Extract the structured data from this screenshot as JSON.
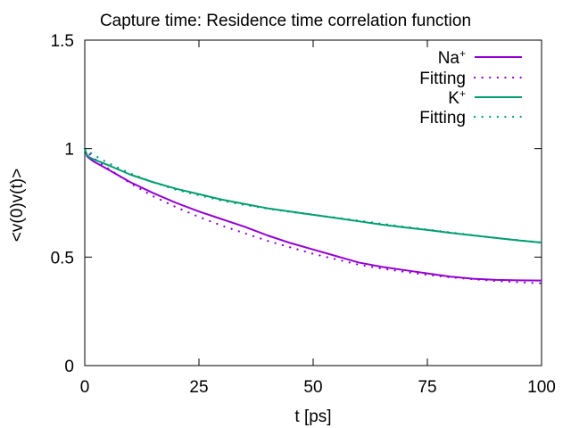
{
  "chart_data": {
    "type": "line",
    "title": "Capture time: Residence time correlation function",
    "xlabel": "t [ps]",
    "ylabel": "<v(0)v(t)>",
    "xlim": [
      0,
      100
    ],
    "ylim": [
      0,
      1.5
    ],
    "xticks": [
      0,
      25,
      50,
      75,
      100
    ],
    "xtick_labels": [
      "0",
      "25",
      "50",
      "75",
      "100"
    ],
    "yticks": [
      0,
      0.5,
      1,
      1.5
    ],
    "ytick_labels": [
      "0",
      "0.5",
      "1",
      "1.5"
    ],
    "grid": false,
    "legend_position": "top-right",
    "series": [
      {
        "name": "Na",
        "name_superscript": "+",
        "style": "solid",
        "color": "#9400d3",
        "x": [
          0,
          0.5,
          1,
          2,
          5,
          10,
          15,
          20,
          25,
          30,
          35,
          40,
          45,
          50,
          55,
          60,
          65,
          70,
          75,
          80,
          85,
          90,
          95,
          100
        ],
        "y": [
          1.0,
          0.965,
          0.955,
          0.94,
          0.905,
          0.845,
          0.795,
          0.75,
          0.71,
          0.675,
          0.64,
          0.6,
          0.565,
          0.535,
          0.505,
          0.475,
          0.455,
          0.44,
          0.425,
          0.41,
          0.4,
          0.395,
          0.393,
          0.392
        ]
      },
      {
        "name": "Fitting",
        "style": "dotted",
        "color": "#9400d3",
        "x": [
          0,
          1,
          2,
          5,
          10,
          15,
          20,
          25,
          30,
          35,
          40,
          45,
          50,
          55,
          60,
          65,
          70,
          75,
          80,
          85,
          90,
          95,
          100
        ],
        "y": [
          1.0,
          0.975,
          0.955,
          0.91,
          0.84,
          0.78,
          0.73,
          0.685,
          0.645,
          0.61,
          0.575,
          0.545,
          0.515,
          0.49,
          0.465,
          0.447,
          0.432,
          0.418,
          0.407,
          0.398,
          0.39,
          0.384,
          0.379
        ]
      },
      {
        "name": "K",
        "name_superscript": "+",
        "style": "solid",
        "color": "#009e73",
        "x": [
          0,
          0.5,
          1,
          2,
          5,
          10,
          15,
          20,
          25,
          30,
          35,
          40,
          45,
          50,
          55,
          60,
          65,
          70,
          75,
          80,
          85,
          90,
          95,
          100
        ],
        "y": [
          1.0,
          0.97,
          0.96,
          0.95,
          0.925,
          0.88,
          0.845,
          0.815,
          0.79,
          0.765,
          0.745,
          0.725,
          0.71,
          0.695,
          0.68,
          0.665,
          0.65,
          0.637,
          0.625,
          0.612,
          0.6,
          0.588,
          0.577,
          0.567
        ]
      },
      {
        "name": "Fitting",
        "style": "dotted",
        "color": "#009e73",
        "x": [
          0,
          1,
          2,
          5,
          10,
          15,
          20,
          25,
          30,
          35,
          40,
          45,
          50,
          55,
          60,
          65,
          70,
          75,
          80,
          85,
          90,
          95,
          100
        ],
        "y": [
          1.0,
          0.985,
          0.97,
          0.935,
          0.885,
          0.845,
          0.81,
          0.785,
          0.76,
          0.74,
          0.723,
          0.708,
          0.695,
          0.682,
          0.668,
          0.654,
          0.64,
          0.627,
          0.614,
          0.601,
          0.589,
          0.578,
          0.567
        ]
      }
    ]
  }
}
